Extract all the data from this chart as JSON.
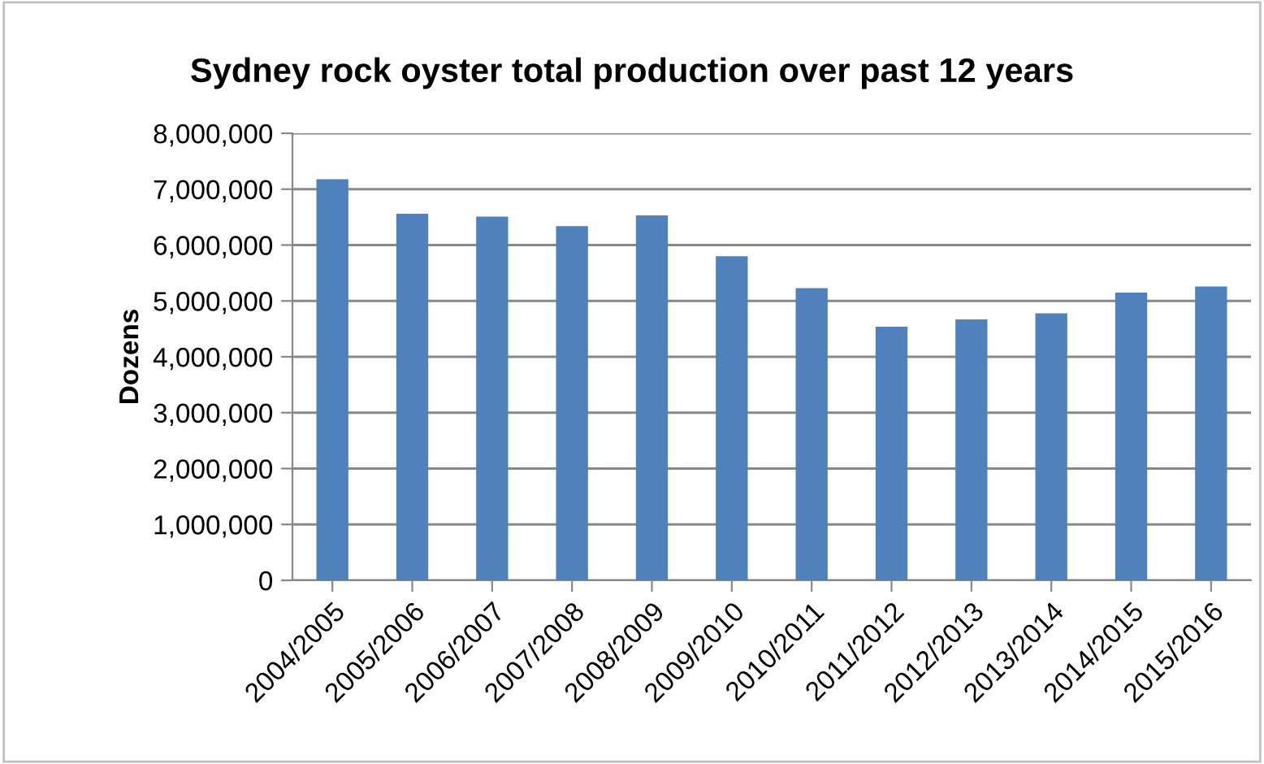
{
  "chart_data": {
    "type": "bar",
    "title": "Sydney rock oyster total production over past 12 years",
    "ylabel": "Dozens",
    "categories": [
      "2004/2005",
      "2005/2006",
      "2006/2007",
      "2007/2008",
      "2008/2009",
      "2009/2010",
      "2010/2011",
      "2011/2012",
      "2012/2013",
      "2013/2014",
      "2014/2015",
      "2015/2016"
    ],
    "values": [
      7180000,
      6560000,
      6510000,
      6340000,
      6530000,
      5800000,
      5230000,
      4540000,
      4670000,
      4780000,
      5150000,
      5260000
    ],
    "color": "#4f81bd",
    "ylim": [
      0,
      8000000
    ],
    "yticks": [
      {
        "value": 0,
        "label": "0"
      },
      {
        "value": 1000000,
        "label": "1,000,000"
      },
      {
        "value": 2000000,
        "label": "2,000,000"
      },
      {
        "value": 3000000,
        "label": "3,000,000"
      },
      {
        "value": 4000000,
        "label": "4,000,000"
      },
      {
        "value": 5000000,
        "label": "5,000,000"
      },
      {
        "value": 6000000,
        "label": "6,000,000"
      },
      {
        "value": 7000000,
        "label": "7,000,000"
      },
      {
        "value": 8000000,
        "label": "8,000,000"
      }
    ],
    "grid": "y"
  }
}
